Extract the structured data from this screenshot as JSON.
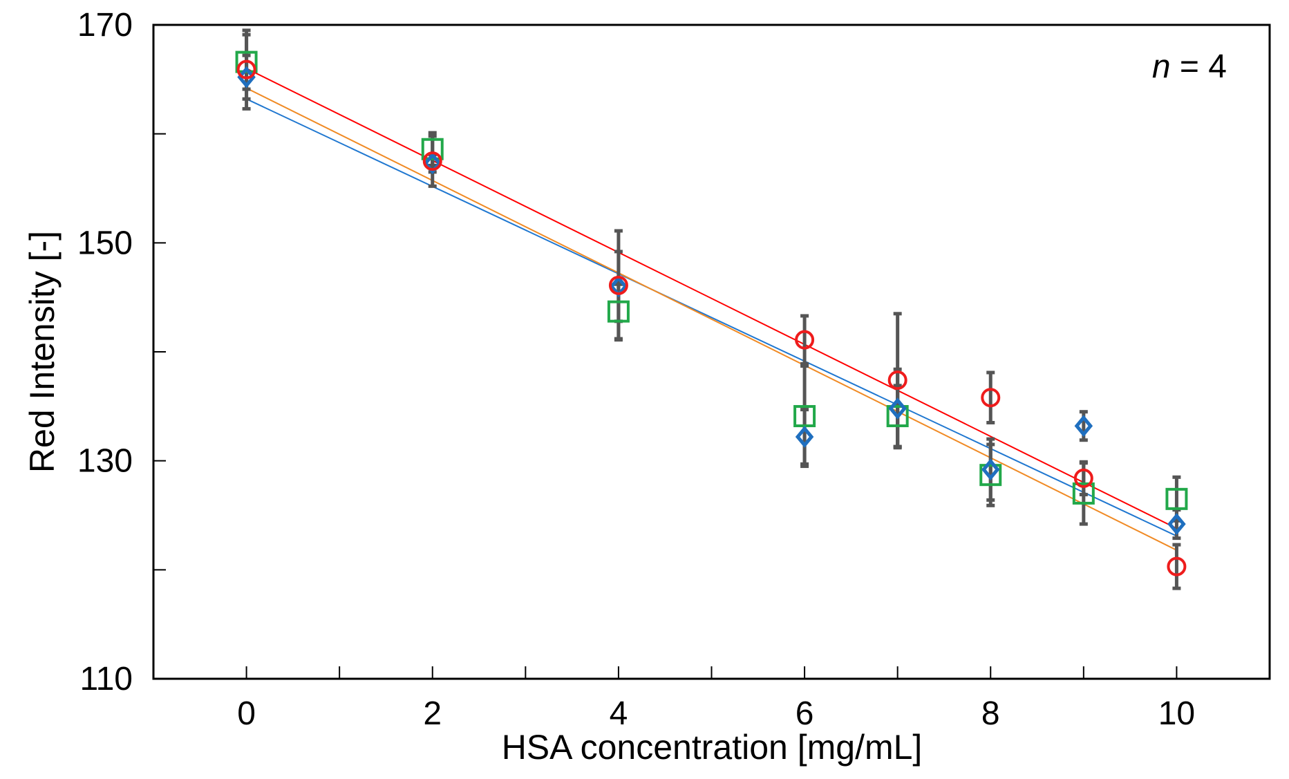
{
  "chart_data": {
    "type": "scatter",
    "title": "",
    "xlabel": "HSA concentration [mg/mL]",
    "ylabel": "Red Intensity [-]",
    "xlim": [
      -1,
      11
    ],
    "ylim": [
      110,
      170
    ],
    "x_ticks": [
      0,
      2,
      4,
      6,
      8,
      10
    ],
    "x_minor_ticks": [
      1,
      3,
      5,
      7,
      9
    ],
    "y_ticks": [
      110,
      130,
      150,
      170
    ],
    "y_minor_ticks": [
      120,
      140,
      160
    ],
    "x_tick_labels": [
      "0",
      "2",
      "4",
      "6",
      "8",
      "10"
    ],
    "y_tick_labels": [
      "110",
      "130",
      "150",
      "170"
    ],
    "grid": false,
    "annotation": {
      "italic": "n",
      "rest": " = 4"
    },
    "series": [
      {
        "name": "diamond series",
        "marker": "diamond",
        "color": "#1f6fbf",
        "fit_color": "#1f77d0",
        "x": [
          0,
          2,
          4,
          6,
          7,
          8,
          9,
          10
        ],
        "y": [
          165.2,
          157.3,
          146.0,
          132.2,
          134.8,
          129.2,
          133.2,
          124.2
        ],
        "err": [
          2.0,
          0.8,
          3.2,
          2.5,
          3.6,
          2.8,
          1.3,
          1.3
        ],
        "fit": {
          "x": [
            0,
            10
          ],
          "y": [
            163.2,
            123.1
          ]
        }
      },
      {
        "name": "circle series",
        "marker": "circle",
        "color": "#ee1c1c",
        "fit_color": "#ff0000",
        "x": [
          0,
          2,
          4,
          6,
          7,
          8,
          9,
          10
        ],
        "y": [
          165.9,
          157.5,
          146.1,
          141.1,
          137.4,
          135.8,
          128.4,
          120.3
        ],
        "err": [
          3.6,
          2.3,
          5.0,
          2.2,
          6.1,
          2.3,
          1.5,
          2.0
        ],
        "fit": {
          "x": [
            0,
            10
          ],
          "y": [
            166.0,
            123.8
          ]
        }
      },
      {
        "name": "square series",
        "marker": "square",
        "color": "#22a84a",
        "fit_color": "#f08a24",
        "x": [
          0,
          2,
          4,
          6,
          7,
          8,
          9,
          10
        ],
        "y": [
          166.6,
          158.6,
          143.7,
          134.1,
          134.1,
          128.7,
          127.0,
          126.5
        ],
        "err": [
          2.5,
          1.5,
          2.5,
          4.6,
          2.8,
          2.8,
          2.8,
          2.0
        ],
        "fit": {
          "x": [
            0,
            10
          ],
          "y": [
            164.2,
            121.8
          ]
        }
      }
    ]
  }
}
